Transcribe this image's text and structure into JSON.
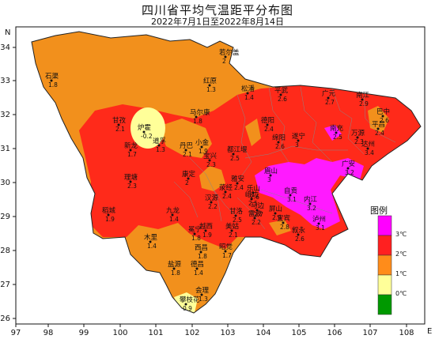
{
  "title": "四川省平均气温距平分布图",
  "subtitle": "2022年7月1日至2022年8月14日",
  "axis": {
    "x_ticks": [
      "97",
      "98",
      "99",
      "100",
      "101",
      "102",
      "103",
      "104",
      "105",
      "106",
      "107",
      "108"
    ],
    "y_ticks": [
      "34",
      "33",
      "32",
      "31",
      "30",
      "29",
      "28",
      "27",
      "26"
    ],
    "x_letter": "E",
    "y_letter": "N"
  },
  "legend": {
    "title": "图例",
    "items": [
      {
        "label": "3℃",
        "color": "#ff00ff"
      },
      {
        "label": "2℃",
        "color": "#ff2020"
      },
      {
        "label": "1℃",
        "color": "#ff8c1a"
      },
      {
        "label": "0℃",
        "color": "#ffff99"
      },
      {
        "label": "",
        "color": "#009900"
      }
    ]
  },
  "colors": {
    "class_0_1": "#ffff99",
    "class_1_2": "#f2901c",
    "class_2_3": "#ff2a1a",
    "class_3_plus": "#ff1aff",
    "boundary": "#888888",
    "outline": "#222222"
  },
  "stations": [
    {
      "name": "若尔盖",
      "value": "2"
    },
    {
      "name": "石渠",
      "value": "1.8"
    },
    {
      "name": "红原",
      "value": "1.3"
    },
    {
      "name": "松潘",
      "value": "1.4"
    },
    {
      "name": "平武",
      "value": "2.6"
    },
    {
      "name": "广元",
      "value": "2.7"
    },
    {
      "name": "南江",
      "value": "2.9"
    },
    {
      "name": "甘孜",
      "value": "2.1"
    },
    {
      "name": "马尔康",
      "value": "1.8"
    },
    {
      "name": "炉霍",
      "value": "-0.2"
    },
    {
      "name": "道孚",
      "value": "1.3"
    },
    {
      "name": "新龙",
      "value": "1.7"
    },
    {
      "name": "巴中",
      "value": "2.6"
    },
    {
      "name": "平昌",
      "value": "2.4"
    },
    {
      "name": "达州",
      "value": "3.4"
    },
    {
      "name": "绵阳",
      "value": "2.6"
    },
    {
      "name": "德阳",
      "value": "2.4"
    },
    {
      "name": "遂宁",
      "value": "3"
    },
    {
      "name": "南充",
      "value": "2.5"
    },
    {
      "name": "广安",
      "value": "3.2"
    },
    {
      "name": "理塘",
      "value": "2.3"
    },
    {
      "name": "康定",
      "value": "2"
    },
    {
      "name": "雅安",
      "value": "2.4"
    },
    {
      "name": "乐山",
      "value": "2.6"
    },
    {
      "name": "眉山",
      "value": "3"
    },
    {
      "name": "内江",
      "value": "3.2"
    },
    {
      "name": "自贡",
      "value": "3.1"
    },
    {
      "name": "泸州",
      "value": "3.1"
    },
    {
      "name": "宜宾",
      "value": "2.8"
    },
    {
      "name": "稻城",
      "value": "1.9"
    },
    {
      "name": "九龙",
      "value": "1.4"
    },
    {
      "name": "木里",
      "value": "1.4"
    },
    {
      "name": "西昌",
      "value": "1.8"
    },
    {
      "name": "昭觉",
      "value": "1.7"
    },
    {
      "name": "盐源",
      "value": "1.8"
    },
    {
      "name": "德昌",
      "value": "1.4"
    },
    {
      "name": "会理",
      "value": "1.3"
    },
    {
      "name": "攀枝花",
      "value": "0.9"
    },
    {
      "name": "雷波",
      "value": "2.2"
    },
    {
      "name": "屏山",
      "value": "2.9"
    },
    {
      "name": "叙永",
      "value": "2.6"
    },
    {
      "name": "丹巴",
      "value": "2.1"
    },
    {
      "name": "小金",
      "value": "1.9"
    },
    {
      "name": "宝兴",
      "value": "2.3"
    },
    {
      "name": "万源",
      "value": "2.3"
    },
    {
      "name": "汉源",
      "value": "2.2"
    },
    {
      "name": "甘洛",
      "value": "2.5"
    },
    {
      "name": "越西",
      "value": "1.9"
    },
    {
      "name": "美姑",
      "value": "2.1"
    },
    {
      "name": "冕宁",
      "value": "1.8"
    },
    {
      "name": "马边",
      "value": "2.7"
    },
    {
      "name": "峨边",
      "value": "2.5"
    },
    {
      "name": "都江堰",
      "value": "2.5"
    },
    {
      "name": "荥经",
      "value": "2.4"
    }
  ]
}
